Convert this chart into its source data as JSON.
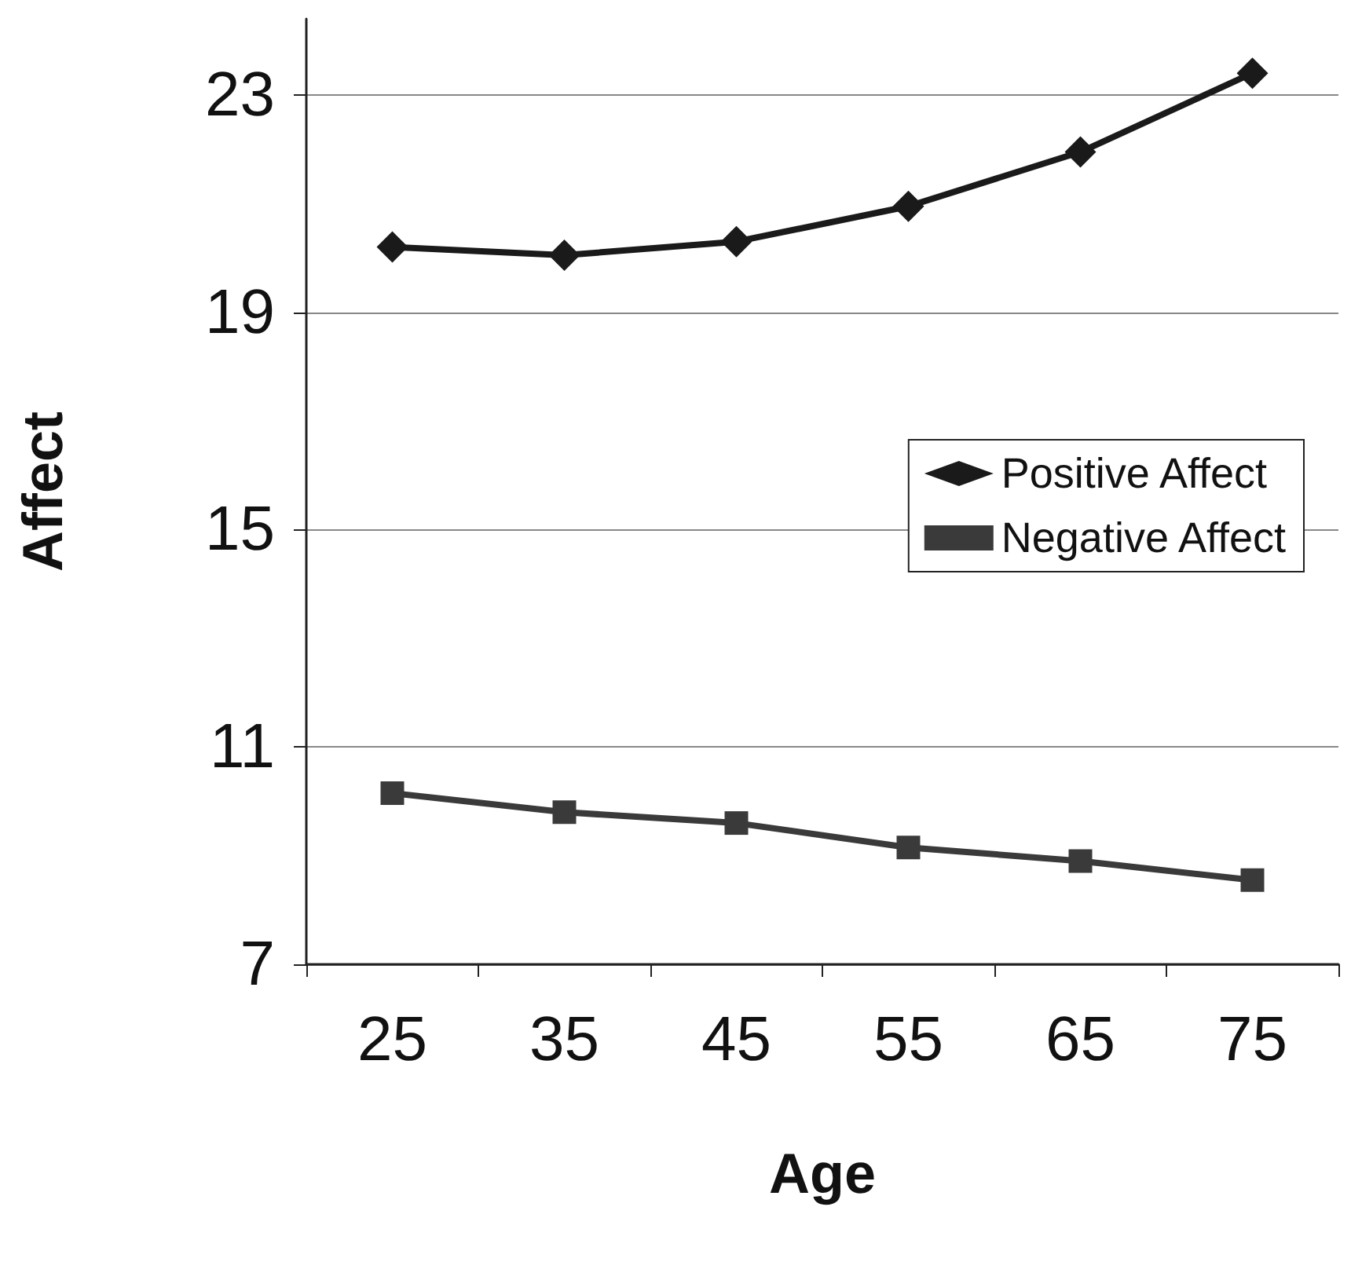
{
  "chart_data": {
    "type": "line",
    "xlabel": "Age",
    "ylabel": "Affect",
    "categories": [
      "25",
      "35",
      "45",
      "55",
      "65",
      "75"
    ],
    "series": [
      {
        "name": "Positive Affect",
        "color": "#1a1a1a",
        "marker": "diamond",
        "values": [
          20.2,
          20.05,
          20.3,
          20.95,
          21.95,
          23.4
        ]
      },
      {
        "name": "Negative Affect",
        "color": "#3a3a3a",
        "marker": "square",
        "values": [
          10.15,
          9.8,
          9.6,
          9.15,
          8.9,
          8.55
        ]
      }
    ],
    "ylim": [
      7,
      24.4
    ],
    "yticks": [
      7,
      11,
      15,
      19,
      23
    ],
    "grid": "y",
    "legend": "right",
    "line_style": "solid"
  }
}
